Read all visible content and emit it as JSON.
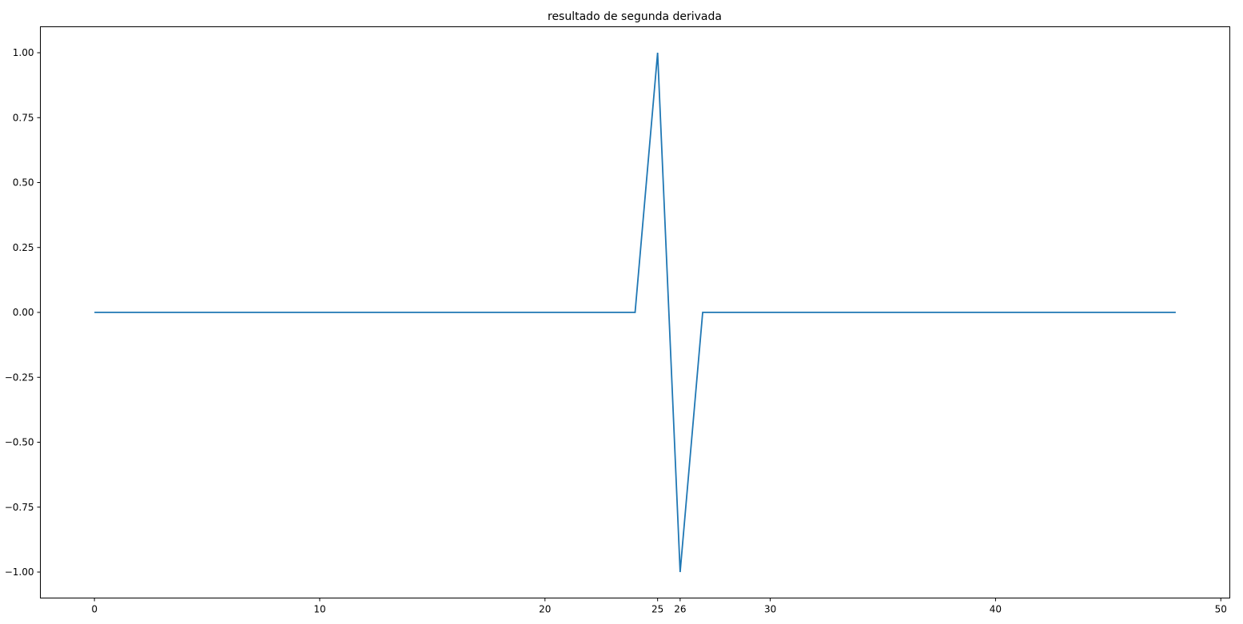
{
  "chart_data": {
    "type": "line",
    "title": "resultado de segunda derivada",
    "xlabel": "",
    "ylabel": "",
    "xlim": [
      -2.4,
      50.4
    ],
    "ylim": [
      -1.1,
      1.1
    ],
    "xticks": [
      0,
      10,
      20,
      25,
      26,
      30,
      40,
      50
    ],
    "xtick_labels": [
      "0",
      "10",
      "20",
      "25",
      "26",
      "30",
      "40",
      "50"
    ],
    "yticks": [
      1.0,
      0.75,
      0.5,
      0.25,
      0.0,
      -0.25,
      -0.5,
      -0.75,
      -1.0
    ],
    "ytick_labels": [
      "1.00",
      "0.75",
      "0.50",
      "0.25",
      "0.00",
      "−0.25",
      "−0.50",
      "−0.75",
      "−1.00"
    ],
    "grid": false,
    "series": [
      {
        "color": "#1f77b4",
        "x": [
          0,
          1,
          2,
          3,
          4,
          5,
          6,
          7,
          8,
          9,
          10,
          11,
          12,
          13,
          14,
          15,
          16,
          17,
          18,
          19,
          20,
          21,
          22,
          23,
          24,
          25,
          26,
          27,
          28,
          29,
          30,
          31,
          32,
          33,
          34,
          35,
          36,
          37,
          38,
          39,
          40,
          41,
          42,
          43,
          44,
          45,
          46,
          47,
          48
        ],
        "y": [
          0,
          0,
          0,
          0,
          0,
          0,
          0,
          0,
          0,
          0,
          0,
          0,
          0,
          0,
          0,
          0,
          0,
          0,
          0,
          0,
          0,
          0,
          0,
          0,
          0,
          1,
          -1,
          0,
          0,
          0,
          0,
          0,
          0,
          0,
          0,
          0,
          0,
          0,
          0,
          0,
          0,
          0,
          0,
          0,
          0,
          0,
          0,
          0,
          0
        ]
      }
    ]
  }
}
